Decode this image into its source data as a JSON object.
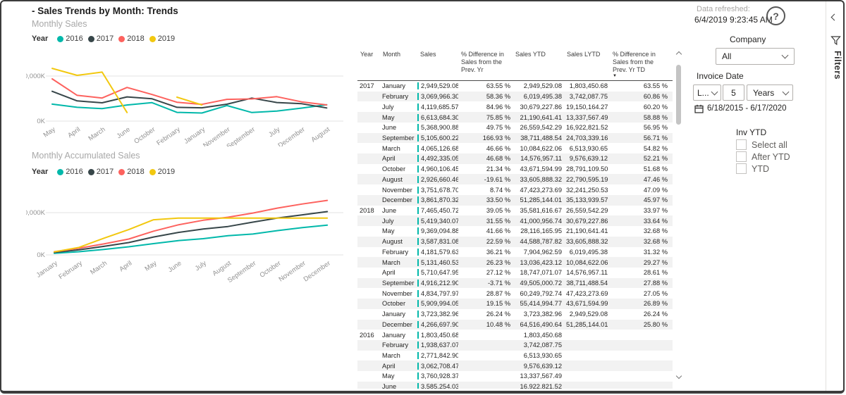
{
  "header": {
    "title": "- Sales Trends by Month: Trends",
    "data_refreshed_label": "Data refreshed:",
    "data_refreshed_value": "6/4/2019 9:23:45 AM",
    "help_glyph": "?"
  },
  "colors": {
    "teal_2016": "#01B8AA",
    "dark_2017": "#374649",
    "red_2018": "#FD625E",
    "yellow_2019": "#F2C80F",
    "gridline": "#e3e3e3",
    "axis_text": "#919191"
  },
  "chart_data": [
    {
      "type": "line",
      "title": "Monthly Sales",
      "legend_label": "Year",
      "legend_position": "top",
      "grid": true,
      "unit": "thousands",
      "ylim": [
        0,
        13400
      ],
      "yticks": [
        {
          "v": 0,
          "label": "0K"
        },
        {
          "v": 10000,
          "label": "10,000K"
        }
      ],
      "categories": [
        "May",
        "April",
        "March",
        "June",
        "October",
        "February",
        "January",
        "November",
        "September",
        "July",
        "December",
        "August"
      ],
      "series": [
        {
          "name": "2016",
          "color": "#01B8AA",
          "values": [
            3761,
            3063,
            2772,
            3585,
            4088,
            1939,
            1803,
            3450,
            1913,
            2227,
            2893,
            3640
          ]
        },
        {
          "name": "2017",
          "color": "#374649",
          "values": [
            6614,
            4492,
            4065,
            5369,
            4960,
            3070,
            2950,
            3752,
            5106,
            4120,
            3862,
            2927
          ]
        },
        {
          "name": "2018",
          "color": "#FD625E",
          "values": [
            9369,
            5711,
            5131,
            7465,
            5910,
            4182,
            3723,
            4835,
            4916,
            5419,
            4267,
            3588
          ]
        },
        {
          "name": "2019",
          "color": "#F2C80F",
          "values": [
            11700,
            10150,
            10870,
            1900,
            null,
            5310,
            3590,
            null,
            null,
            null,
            null,
            null
          ]
        }
      ]
    },
    {
      "type": "line",
      "title": "Monthly Accumulated Sales",
      "legend_label": "Year",
      "legend_position": "top",
      "grid": true,
      "unit": "thousands",
      "ylim": [
        0,
        79000
      ],
      "yticks": [
        {
          "v": 0,
          "label": "0K"
        },
        {
          "v": 50000,
          "label": "50,000K"
        }
      ],
      "categories": [
        "January",
        "February",
        "March",
        "April",
        "May",
        "June",
        "July",
        "August",
        "September",
        "October",
        "November",
        "December"
      ],
      "series": [
        {
          "name": "2016",
          "color": "#01B8AA",
          "values": [
            1803,
            3742,
            6514,
            9577,
            13338,
            16923,
            19150,
            22791,
            24703,
            28791,
            32241,
            35134
          ]
        },
        {
          "name": "2017",
          "color": "#374649",
          "values": [
            2950,
            6019,
            10085,
            14577,
            21191,
            26560,
            30679,
            33606,
            38711,
            43672,
            47423,
            51285
          ]
        },
        {
          "name": "2018",
          "color": "#FD625E",
          "values": [
            3723,
            7905,
            13036,
            18747,
            28116,
            35582,
            41001,
            44589,
            49505,
            55415,
            60250,
            64516
          ]
        },
        {
          "name": "2019",
          "color": "#F2C80F",
          "values": [
            3590,
            8900,
            19770,
            29920,
            41620,
            43520,
            43520,
            43520,
            43520,
            43520,
            43520,
            43520
          ]
        }
      ]
    }
  ],
  "table": {
    "columns": [
      "Year",
      "Month",
      "Sales",
      "% Difference in Sales from the Prev. Yr",
      "Sales YTD",
      "Sales LYTD",
      "% Difference in Sales from the Prev. Yr TD"
    ],
    "sorted_column_index": 6,
    "sort_direction": "descending",
    "rows": [
      [
        "2017",
        "January",
        "2,949,529.08",
        "63.55 %",
        "2,949,529.08",
        "1,803,450.68",
        "63.55 %"
      ],
      [
        "",
        "February",
        "3,069,966.30",
        "58.36 %",
        "6,019,495.38",
        "3,742,087.75",
        "60.86 %"
      ],
      [
        "",
        "July",
        "4,119,685.57",
        "84.96 %",
        "30,679,227.86",
        "19,150,164.27",
        "60.20 %"
      ],
      [
        "",
        "May",
        "6,613,684.30",
        "75.85 %",
        "21,190,641.41",
        "13,337,567.49",
        "58.88 %"
      ],
      [
        "",
        "June",
        "5,368,900.88",
        "49.75 %",
        "26,559,542.29",
        "16,922,821.52",
        "56.95 %"
      ],
      [
        "",
        "September",
        "5,105,600.22",
        "166.93 %",
        "38,711,488.54",
        "24,703,339.16",
        "56.71 %"
      ],
      [
        "",
        "March",
        "4,065,126.68",
        "46.66 %",
        "10,084,622.06",
        "6,513,930.65",
        "54.82 %"
      ],
      [
        "",
        "April",
        "4,492,335.05",
        "46.68 %",
        "14,576,957.11",
        "9,576,639.12",
        "52.21 %"
      ],
      [
        "",
        "October",
        "4,960,106.45",
        "21.34 %",
        "43,671,594.99",
        "28,791,109.50",
        "51.68 %"
      ],
      [
        "",
        "August",
        "2,926,660.46",
        "-19.61 %",
        "33,605,888.32",
        "22,790,595.19",
        "47.46 %"
      ],
      [
        "",
        "November",
        "3,751,678.70",
        "8.74 %",
        "47,423,273.69",
        "32,241,250.53",
        "47.09 %"
      ],
      [
        "",
        "December",
        "3,861,870.32",
        "33.50 %",
        "51,285,144.01",
        "35,133,939.57",
        "45.97 %"
      ],
      [
        "2018",
        "June",
        "7,465,450.72",
        "39.05 %",
        "35,581,616.67",
        "26,559,542.29",
        "33.97 %"
      ],
      [
        "",
        "July",
        "5,419,340.07",
        "31.55 %",
        "41,000,956.74",
        "30,679,227.86",
        "33.64 %"
      ],
      [
        "",
        "May",
        "9,369,094.88",
        "41.66 %",
        "28,116,165.95",
        "21,190,641.41",
        "32.68 %"
      ],
      [
        "",
        "August",
        "3,587,831.08",
        "22.59 %",
        "44,588,787.82",
        "33,605,888.32",
        "32.68 %"
      ],
      [
        "",
        "February",
        "4,181,579.63",
        "36.21 %",
        "7,904,962.59",
        "6,019,495.38",
        "31.32 %"
      ],
      [
        "",
        "March",
        "5,131,460.53",
        "26.23 %",
        "13,036,423.12",
        "10,084,622.06",
        "29.27 %"
      ],
      [
        "",
        "April",
        "5,710,647.95",
        "27.12 %",
        "18,747,071.07",
        "14,576,957.11",
        "28.61 %"
      ],
      [
        "",
        "September",
        "4,916,212.90",
        "-3.71 %",
        "49,505,000.72",
        "38,711,488.54",
        "27.88 %"
      ],
      [
        "",
        "November",
        "4,834,797.97",
        "28.87 %",
        "60,249,792.74",
        "47,423,273.69",
        "27.05 %"
      ],
      [
        "",
        "October",
        "5,909,994.05",
        "19.15 %",
        "55,414,994.77",
        "43,671,594.99",
        "26.89 %"
      ],
      [
        "",
        "January",
        "3,723,382.96",
        "26.24 %",
        "3,723,382.96",
        "2,949,529.08",
        "26.24 %"
      ],
      [
        "",
        "December",
        "4,266,697.90",
        "10.48 %",
        "64,516,490.64",
        "51,285,144.01",
        "25.80 %"
      ],
      [
        "2016",
        "January",
        "1,803,450.68",
        "",
        "1,803,450.68",
        "",
        ""
      ],
      [
        "",
        "February",
        "1,938,637.07",
        "",
        "3,742,087.75",
        "",
        ""
      ],
      [
        "",
        "March",
        "2,771,842.90",
        "",
        "6,513,930.65",
        "",
        ""
      ],
      [
        "",
        "April",
        "3,062,708.47",
        "",
        "9,576,639.12",
        "",
        ""
      ],
      [
        "",
        "May",
        "3,760,928.37",
        "",
        "13,337,567.49",
        "",
        ""
      ],
      [
        "",
        "June",
        "3,585,254.03",
        "",
        "16,922,821.52",
        "",
        ""
      ]
    ]
  },
  "filters_pane": {
    "company_label": "Company",
    "company_value": "All",
    "invoice_date_label": "Invoice Date",
    "range_type_value": "L...",
    "range_number_value": "5",
    "range_unit_value": "Years",
    "date_range": "6/18/2015 - 6/17/2020",
    "inv_ytd_label": "Inv YTD",
    "checkboxes": [
      "Select all",
      "After YTD",
      "YTD"
    ],
    "checkbox_states": [
      false,
      false,
      false
    ]
  },
  "filters_strip": {
    "label": "Filters"
  }
}
